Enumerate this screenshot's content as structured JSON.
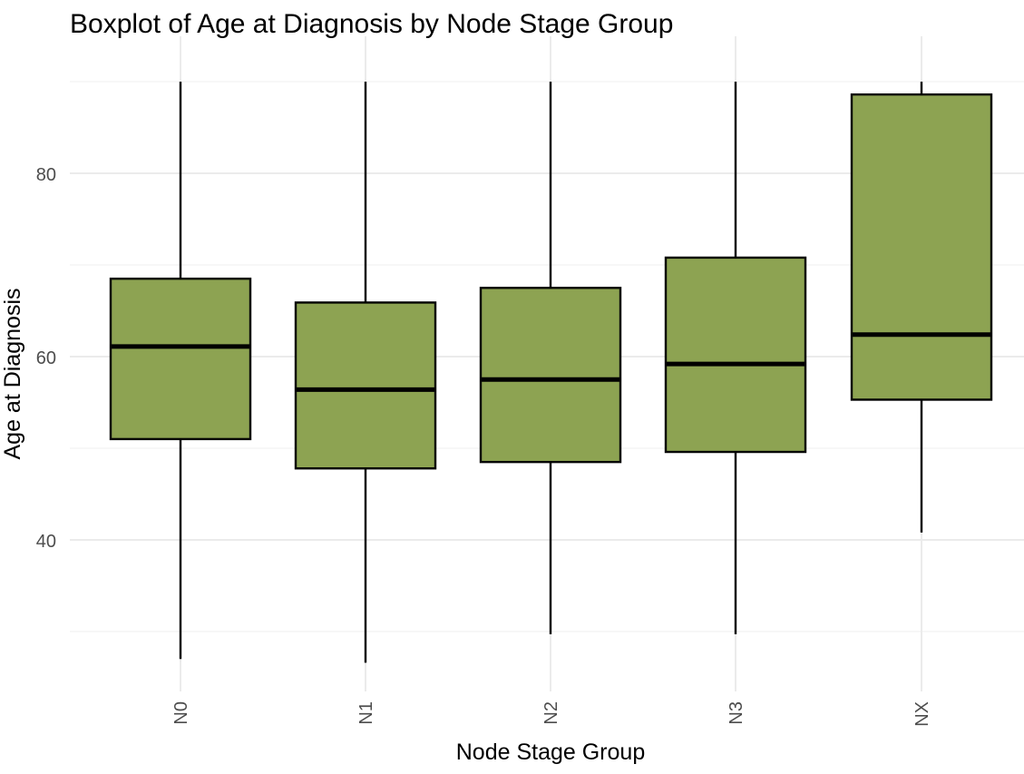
{
  "chart_data": {
    "type": "boxplot",
    "title": "Boxplot of Age at Diagnosis by Node Stage Group",
    "xlabel": "Node Stage Group",
    "ylabel": "Age at Diagnosis",
    "categories": [
      "N0",
      "N1",
      "N2",
      "N3",
      "NX"
    ],
    "boxes": [
      {
        "category": "N0",
        "whisker_low": 27,
        "q1": 51,
        "median": 61.1,
        "q3": 68.5,
        "whisker_high": 90
      },
      {
        "category": "N1",
        "whisker_low": 26.6,
        "q1": 47.8,
        "median": 56.4,
        "q3": 65.9,
        "whisker_high": 90
      },
      {
        "category": "N2",
        "whisker_low": 29.7,
        "q1": 48.5,
        "median": 57.5,
        "q3": 67.5,
        "whisker_high": 90
      },
      {
        "category": "N3",
        "whisker_low": 29.7,
        "q1": 49.6,
        "median": 59.2,
        "q3": 70.8,
        "whisker_high": 90
      },
      {
        "category": "NX",
        "whisker_low": 40.8,
        "q1": 55.3,
        "median": 62.4,
        "q3": 88.6,
        "whisker_high": 90
      }
    ],
    "ylim": [
      23.4,
      90
    ],
    "y_ticks": [
      40,
      60,
      80
    ],
    "y_minor_gridlines": [
      30,
      50,
      70,
      90
    ],
    "grid": true,
    "legend": "none",
    "colors": {
      "box_fill": "#8da352",
      "box_stroke": "#000000",
      "grid_major": "#ebebeb",
      "grid_minor": "#f2f2f2",
      "tick_label": "#4d4d4d",
      "text": "#000000"
    }
  }
}
